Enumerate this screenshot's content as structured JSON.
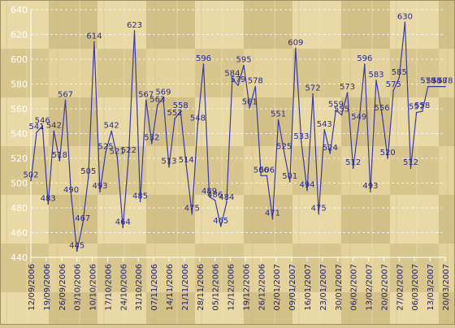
{
  "chart_data": {
    "type": "line",
    "title": "",
    "xlabel": "",
    "ylabel": "",
    "ylim": [
      440,
      640
    ],
    "y_ticks": [
      440,
      460,
      480,
      500,
      520,
      540,
      560,
      580,
      600,
      620,
      640
    ],
    "grid": "horizontal dashed",
    "x_tick_labels": [
      "12/09/2006",
      "19/09/2006",
      "26/09/2006",
      "03/10/2006",
      "10/10/2006",
      "17/10/2006",
      "24/10/2006",
      "31/10/2006",
      "07/11/2006",
      "14/11/2006",
      "21/11/2006",
      "28/11/2006",
      "05/12/2006",
      "12/12/2006",
      "19/12/2006",
      "26/12/2006",
      "02/01/2007",
      "09/01/2007",
      "16/01/2007",
      "23/01/2007",
      "30/01/2007",
      "06/02/2007",
      "13/02/2007",
      "20/02/2007",
      "27/02/2007",
      "06/03/2007",
      "13/03/2007",
      "20/03/2007"
    ],
    "series": [
      {
        "color": "#3a3aa8",
        "values": [
          502,
          541,
          546,
          483,
          542,
          518,
          567,
          490,
          445,
          467,
          505,
          614,
          493,
          525,
          542,
          521,
          464,
          522,
          623,
          485,
          567,
          532,
          563,
          569,
          513,
          552,
          558,
          514,
          475,
          548,
          596,
          489,
          486,
          465,
          484,
          584,
          579,
          595,
          561,
          578,
          506,
          506,
          471,
          551,
          525,
          501,
          609,
          533,
          494,
          572,
          475,
          543,
          524,
          559,
          555,
          573,
          512,
          549,
          596,
          493,
          583,
          556,
          520,
          575,
          585,
          630,
          512,
          557,
          558,
          578,
          578,
          578,
          578
        ]
      }
    ]
  }
}
